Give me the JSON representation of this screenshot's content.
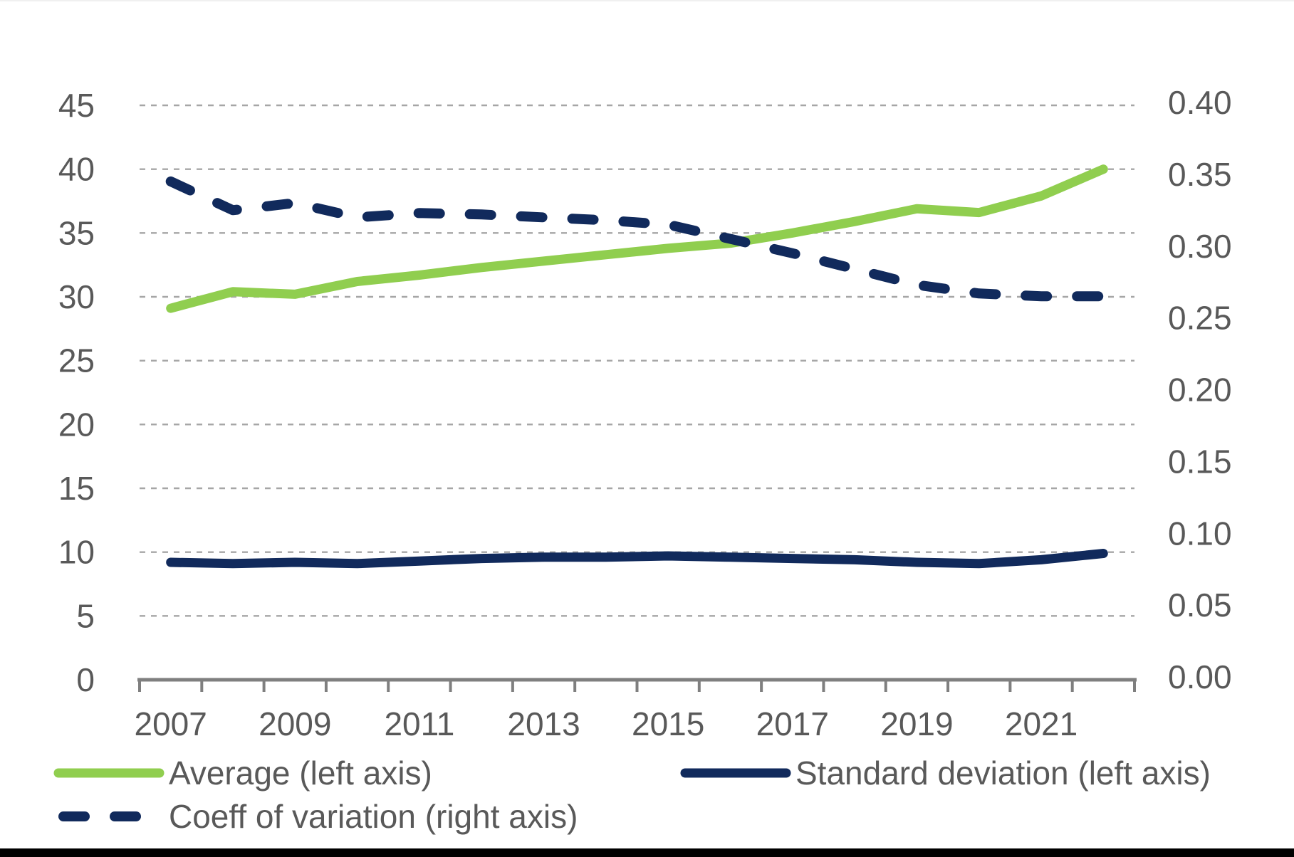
{
  "chart_data": {
    "type": "line",
    "x": [
      2007,
      2008,
      2009,
      2010,
      2011,
      2012,
      2013,
      2014,
      2015,
      2016,
      2017,
      2018,
      2019,
      2020,
      2021,
      2022
    ],
    "x_tick_labels": [
      "2007",
      "2009",
      "2011",
      "2013",
      "2015",
      "2017",
      "2019",
      "2021"
    ],
    "series": [
      {
        "name": "Average (left axis)",
        "axis": "left",
        "style": "solid",
        "color": "#90CE4F",
        "values": [
          29.1,
          30.4,
          30.2,
          31.2,
          31.7,
          32.3,
          32.8,
          33.3,
          33.8,
          34.2,
          35.0,
          35.9,
          36.9,
          36.6,
          37.9,
          40.0
        ]
      },
      {
        "name": "Standard deviation (left axis)",
        "axis": "left",
        "style": "solid",
        "color": "#112A5C",
        "values": [
          9.2,
          9.1,
          9.2,
          9.1,
          9.3,
          9.5,
          9.6,
          9.6,
          9.7,
          9.6,
          9.5,
          9.4,
          9.2,
          9.1,
          9.4,
          9.9
        ]
      },
      {
        "name": "Coeff of variation (right axis)",
        "axis": "right",
        "style": "dashed",
        "color": "#112A5C",
        "values": [
          0.347,
          0.327,
          0.332,
          0.322,
          0.325,
          0.324,
          0.322,
          0.32,
          0.317,
          0.307,
          0.297,
          0.286,
          0.275,
          0.269,
          0.267,
          0.267
        ]
      }
    ],
    "left_axis": {
      "min": 0,
      "max": 45,
      "step": 5,
      "tick_labels": [
        "0",
        "5",
        "10",
        "15",
        "20",
        "25",
        "30",
        "35",
        "40",
        "45"
      ]
    },
    "right_axis": {
      "min": 0.0,
      "max": 0.4,
      "step": 0.05,
      "tick_labels": [
        "0.00",
        "0.05",
        "0.10",
        "0.15",
        "0.20",
        "0.25",
        "0.30",
        "0.35",
        "0.40"
      ]
    },
    "grid": "horizontal-dashed",
    "legend_position": "bottom",
    "title": "",
    "xlabel": "",
    "ylabel": ""
  },
  "legend": {
    "items": [
      {
        "label": "Average (left axis)",
        "style": "solid",
        "color": "#90CE4F"
      },
      {
        "label": "Standard deviation (left axis)",
        "style": "solid",
        "color": "#112A5C"
      },
      {
        "label": "Coeff of variation (right axis)",
        "style": "dashed",
        "color": "#112A5C"
      }
    ]
  },
  "colors": {
    "text": "#595959",
    "gridline": "#A6A6A6",
    "axis_line": "#7F7F7F",
    "bottom_bar": "#000000"
  }
}
